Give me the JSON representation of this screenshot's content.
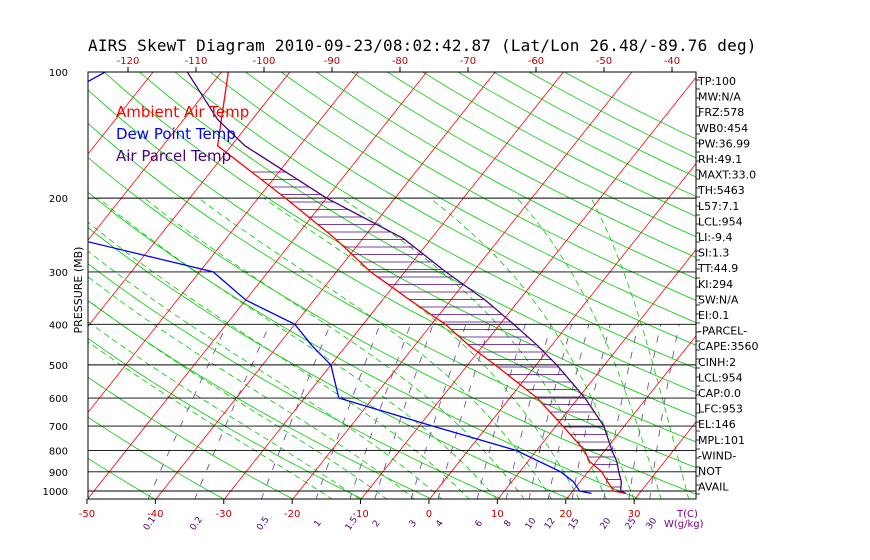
{
  "chart_data": {
    "type": "line",
    "title": "AIRS SkewT Diagram 2010-09-23/08:02:42.87 (Lat/Lon 26.48/-89.76 deg)",
    "ylabel": "PRESSURE (MB)",
    "y_scale": "log",
    "ylim": [
      1050,
      100
    ],
    "y_ticks": [
      100,
      200,
      300,
      400,
      500,
      600,
      700,
      800,
      900,
      1000
    ],
    "x_unit_label": "T(C)",
    "x_bottom_ticks": [
      -50,
      -40,
      -30,
      -20,
      -10,
      0,
      10,
      20,
      30
    ],
    "x_top_ticks": [
      -120,
      -110,
      -100,
      -90,
      -80,
      -70,
      -60,
      -50,
      -40
    ],
    "mixing_ratio_label": "W(g/kg)",
    "mixing_ratio_ticks": [
      "0.1",
      "0.2",
      "0.5",
      "1",
      "1.5",
      "2",
      "3",
      "4",
      "6",
      "8",
      "10",
      "12",
      "15",
      "20",
      "25",
      "30"
    ],
    "legend": [
      {
        "label": "Ambient Air Temp",
        "color": "#ff0000"
      },
      {
        "label": "Dew Point Temp",
        "color": "#0000ff"
      },
      {
        "label": "Air Parcel Temp",
        "color": "#4b0082"
      }
    ],
    "series": [
      {
        "name": "Ambient Air Temp",
        "color": "#ff0000",
        "points": [
          [
            100,
            -79
          ],
          [
            150,
            -72
          ],
          [
            200,
            -56
          ],
          [
            250,
            -44
          ],
          [
            300,
            -35
          ],
          [
            350,
            -26
          ],
          [
            400,
            -18
          ],
          [
            450,
            -12
          ],
          [
            500,
            -6
          ],
          [
            600,
            4
          ],
          [
            700,
            11
          ],
          [
            800,
            17
          ],
          [
            850,
            19
          ],
          [
            900,
            22
          ],
          [
            950,
            24
          ],
          [
            1000,
            26
          ],
          [
            1013,
            28
          ]
        ]
      },
      {
        "name": "Dew Point Temp",
        "color": "#0000ff",
        "points": [
          [
            100,
            -97
          ],
          [
            150,
            -108
          ],
          [
            200,
            -100
          ],
          [
            250,
            -82
          ],
          [
            300,
            -58
          ],
          [
            350,
            -50
          ],
          [
            400,
            -40
          ],
          [
            450,
            -35
          ],
          [
            500,
            -30
          ],
          [
            600,
            -25
          ],
          [
            700,
            -8
          ],
          [
            800,
            7
          ],
          [
            900,
            16
          ],
          [
            950,
            19
          ],
          [
            1000,
            21
          ],
          [
            1013,
            23
          ]
        ]
      },
      {
        "name": "Air Parcel Temp",
        "color": "#4b0082",
        "points": [
          [
            100,
            -85
          ],
          [
            130,
            -75
          ],
          [
            150,
            -68
          ],
          [
            200,
            -50
          ],
          [
            250,
            -34
          ],
          [
            300,
            -24
          ],
          [
            350,
            -15
          ],
          [
            400,
            -8
          ],
          [
            450,
            -2
          ],
          [
            500,
            3
          ],
          [
            600,
            11
          ],
          [
            700,
            17
          ],
          [
            800,
            21
          ],
          [
            850,
            23
          ],
          [
            900,
            24.5
          ],
          [
            950,
            26
          ],
          [
            1000,
            27
          ],
          [
            1013,
            28
          ]
        ]
      }
    ],
    "indices": [
      "TP:100",
      "MW:N/A",
      "FRZ:578",
      "WB0:454",
      "PW:36.99",
      "RH:49.1",
      "MAXT:33.0",
      "TH:5463",
      "L57:7.1",
      "LCL:954",
      "LI:-9.4",
      "SI:1.3",
      "TT:44.9",
      "KI:294",
      "SW:N/A",
      "EI:0.1",
      "-PARCEL-",
      "CAPE:3560",
      "CINH:2",
      "LCL:954",
      "CAP:0.0",
      "LFC:953",
      "EL:146",
      "MPL:101",
      "-WIND-",
      "NOT",
      "AVAIL"
    ]
  }
}
